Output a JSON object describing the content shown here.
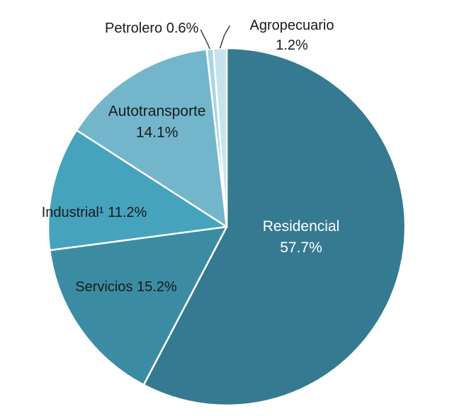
{
  "chart_data": {
    "type": "pie",
    "title": "",
    "start_angle_deg": 0,
    "direction": "clockwise",
    "slices": [
      {
        "label": "Residencial",
        "value": 57.7,
        "display": "57.7%",
        "color": "#357a90",
        "label_color": "#ffffff",
        "label_mode": "inside-two-line"
      },
      {
        "label": "Servicios",
        "value": 15.2,
        "display": "15.2%",
        "color": "#3b8ca3",
        "label_color": "#1a1a1a",
        "label_mode": "inside-one-line"
      },
      {
        "label": "Industrial¹",
        "value": 11.2,
        "display": "11.2%",
        "color": "#45a3bd",
        "label_color": "#1a1a1a",
        "label_mode": "inside-one-line"
      },
      {
        "label": "Autotransporte",
        "value": 14.1,
        "display": "14.1%",
        "color": "#73b6cc",
        "label_color": "#1a1a1a",
        "label_mode": "inside-two-line"
      },
      {
        "label": "Petrolero",
        "value": 0.6,
        "display": "0.6%",
        "color": "#a9d5e3",
        "label_color": "#1a1a1a",
        "label_mode": "outside-left"
      },
      {
        "label": "Agropecuario",
        "value": 1.2,
        "display": "1.2%",
        "color": "#c6e3ed",
        "label_color": "#1a1a1a",
        "label_mode": "outside-right"
      }
    ]
  }
}
